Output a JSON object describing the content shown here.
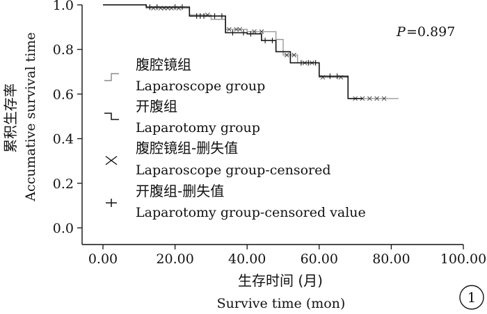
{
  "chart_data": {
    "type": "line",
    "subtype": "kaplan-meier step",
    "xlabel_cn": "生存时间 (月)",
    "xlabel_en": "Survive time (mon)",
    "ylabel_cn": "累积生存率",
    "ylabel_en": "Accumative survival time",
    "p_value_label": "P",
    "p_value_text": "=0.897",
    "panel_label": "1",
    "xlim": [
      0,
      100
    ],
    "ylim": [
      0,
      1.0
    ],
    "x_ticks": [
      0,
      20,
      40,
      60,
      80,
      100
    ],
    "x_tick_labels": [
      "0.00",
      "20.00",
      "40.00",
      "60.00",
      "80.00",
      "100.00"
    ],
    "y_ticks": [
      0,
      0.2,
      0.4,
      0.6,
      0.8,
      1.0
    ],
    "y_tick_labels": [
      "0.0",
      "0.2",
      "0.4",
      "0.6",
      "0.8",
      "1.0"
    ],
    "grid": false,
    "legend_position": "left",
    "legend": [
      {
        "symbol": "step-up",
        "label_cn": "腹腔镜组",
        "label_en": "Laparoscope group"
      },
      {
        "symbol": "step-down",
        "label_cn": "开腹组",
        "label_en": "Laparotomy group"
      },
      {
        "symbol": "x-mark",
        "label_cn": "腹腔镜组-删失值",
        "label_en": "Laparoscope group-censored"
      },
      {
        "symbol": "plus-mark",
        "label_cn": "开腹组-删失值",
        "label_en": "Laparotomy group-censored value"
      }
    ],
    "series": [
      {
        "style": "solid",
        "color": "#9a9a9a",
        "steps": [
          [
            0,
            1.0
          ],
          [
            12,
            0.985
          ],
          [
            24,
            0.955
          ],
          [
            30,
            0.935
          ],
          [
            34,
            0.89
          ],
          [
            40,
            0.88
          ],
          [
            48,
            0.845
          ],
          [
            50,
            0.775
          ],
          [
            54,
            0.74
          ],
          [
            60,
            0.675
          ],
          [
            68,
            0.58
          ],
          [
            82,
            0.58
          ]
        ],
        "censored": [
          14,
          16,
          17,
          18,
          19,
          21,
          29,
          35,
          37,
          38,
          42,
          44,
          51,
          53,
          56,
          58,
          61,
          66,
          70,
          72,
          74,
          76,
          78
        ],
        "censor_mark": "x"
      },
      {
        "style": "solid",
        "color": "#111111",
        "steps": [
          [
            0,
            1.0
          ],
          [
            12,
            0.99
          ],
          [
            24,
            0.95
          ],
          [
            34,
            0.875
          ],
          [
            40,
            0.87
          ],
          [
            44,
            0.84
          ],
          [
            48,
            0.79
          ],
          [
            52,
            0.74
          ],
          [
            60,
            0.68
          ],
          [
            68,
            0.58
          ],
          [
            72,
            0.58
          ]
        ],
        "censored": [
          13,
          15,
          20,
          22,
          26,
          27,
          28,
          31,
          33,
          36,
          39,
          41,
          45,
          47,
          55,
          57,
          59,
          63,
          65
        ],
        "censor_mark": "+"
      }
    ]
  }
}
